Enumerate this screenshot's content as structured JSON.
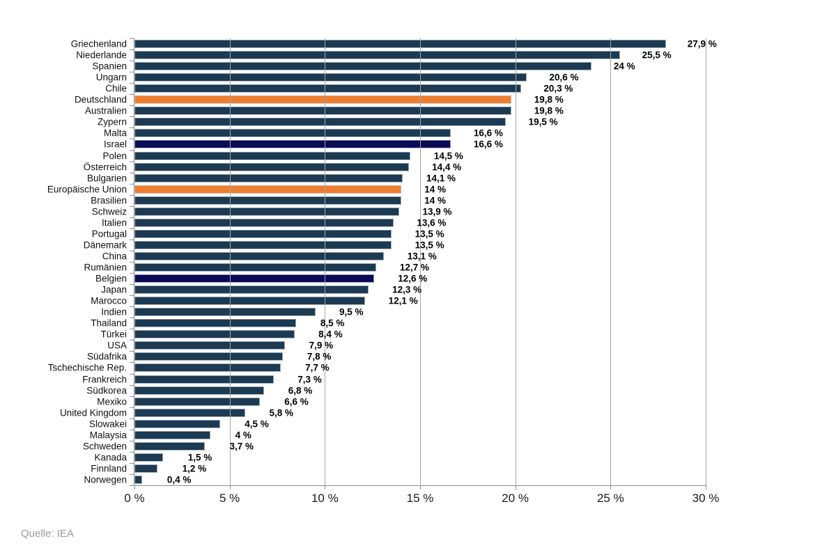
{
  "footer": {
    "source_label": "Quelle: IEA"
  },
  "colors": {
    "bar_default": "#1C3A52",
    "bar_highlight_orange": "#ED7D31",
    "bar_highlight_navy": "#0A0A55",
    "gridline": "#A6A6A6",
    "axis": "#8C8C8C",
    "value_label": "#000000",
    "category_label": "#111111",
    "source_text": "#9B9B9B"
  },
  "chart_data": {
    "type": "bar",
    "orientation": "horizontal",
    "title": "",
    "xlabel": "",
    "ylabel": "",
    "xlim": [
      0,
      30
    ],
    "grid": "vertical",
    "legend": "none",
    "x_tick_values": [
      0,
      5,
      10,
      15,
      20,
      25,
      30
    ],
    "x_tick_labels": [
      "0 %",
      "5 %",
      "10 %",
      "15 %",
      "20 %",
      "25 %",
      "30 %"
    ],
    "highlighted_orange": [
      "Deutschland",
      "Europäische Union"
    ],
    "highlighted_navy": [
      "Israel",
      "Belgien"
    ],
    "categories": [
      "Griechenland",
      "Niederlande",
      "Spanien",
      "Ungarn",
      "Chile",
      "Deutschland",
      "Australien",
      "Zypern",
      "Malta",
      "Israel",
      "Polen",
      "Österreich",
      "Bulgarien",
      "Europäische Union",
      "Brasilien",
      "Schweiz",
      "Italien",
      "Portugal",
      "Dänemark",
      "China",
      "Rumänien",
      "Belgien",
      "Japan",
      "Marocco",
      "Indien",
      "Thailand",
      "Türkei",
      "USA",
      "Südafrika",
      "Tschechische Rep.",
      "Frankreich",
      "Südkorea",
      "Mexiko",
      "United Kingdom",
      "Slowakei",
      "Malaysia",
      "Schweden",
      "Kanada",
      "Finnland",
      "Norwegen"
    ],
    "values": [
      27.9,
      25.5,
      24,
      20.6,
      20.3,
      19.8,
      19.8,
      19.5,
      16.6,
      16.6,
      14.5,
      14.4,
      14.1,
      14,
      14,
      13.9,
      13.6,
      13.5,
      13.5,
      13.1,
      12.7,
      12.6,
      12.3,
      12.1,
      9.5,
      8.5,
      8.4,
      7.9,
      7.8,
      7.7,
      7.3,
      6.8,
      6.6,
      5.8,
      4.5,
      4,
      3.7,
      1.5,
      1.2,
      0.4
    ],
    "value_labels": [
      "27,9 %",
      "25,5 %",
      "24 %",
      "20,6 %",
      "20,3 %",
      "19,8 %",
      "19,8 %",
      "19,5 %",
      "16,6 %",
      "16,6 %",
      "14,5 %",
      "14,4 %",
      "14,1 %",
      "14 %",
      "14 %",
      "13,9 %",
      "13,6 %",
      "13,5 %",
      "13,5 %",
      "13,1 %",
      "12,7 %",
      "12,6 %",
      "12,3 %",
      "12,1 %",
      "9,5 %",
      "8,5 %",
      "8,4 %",
      "7,9 %",
      "7,8 %",
      "7,7 %",
      "7,3 %",
      "6,8 %",
      "6,6 %",
      "5,8 %",
      "4,5 %",
      "4 %",
      "3,7 %",
      "1,5 %",
      "1,2 %",
      "0,4 %"
    ],
    "bar_color_keys": [
      "default",
      "default",
      "default",
      "default",
      "default",
      "orange",
      "default",
      "default",
      "default",
      "navy",
      "default",
      "default",
      "default",
      "orange",
      "default",
      "default",
      "default",
      "default",
      "default",
      "default",
      "default",
      "navy",
      "default",
      "default",
      "default",
      "default",
      "default",
      "default",
      "default",
      "default",
      "default",
      "default",
      "default",
      "default",
      "default",
      "default",
      "default",
      "default",
      "default",
      "default"
    ]
  }
}
